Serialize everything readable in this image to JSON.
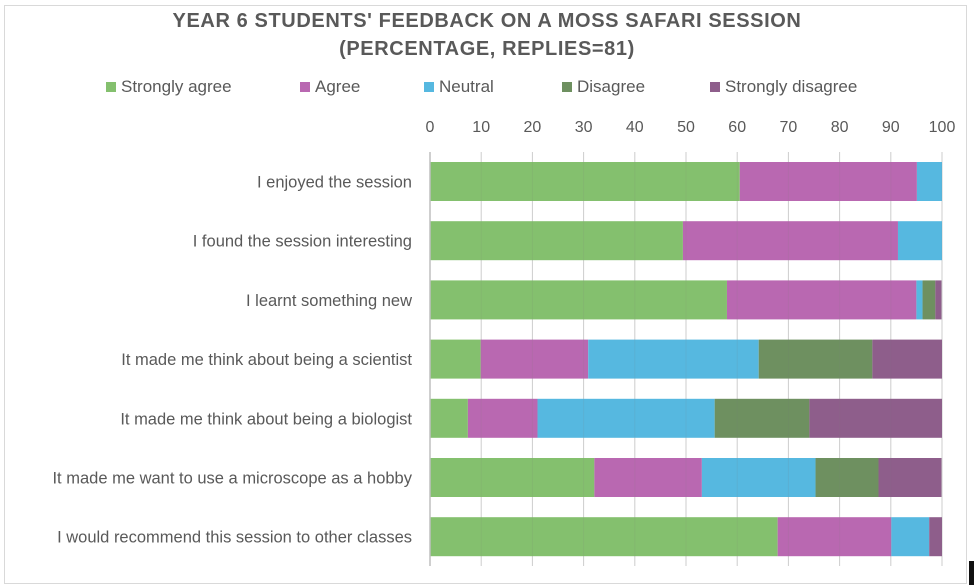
{
  "chart_data": {
    "type": "bar",
    "orientation": "horizontal",
    "stacked": true,
    "title_line1": "YEAR 6 STUDENTS' FEEDBACK ON A MOSS SAFARI SESSION",
    "title_line2": "(PERCENTAGE, REPLIES=81)",
    "xlabel": "",
    "ylabel": "",
    "xlim": [
      0,
      100
    ],
    "xticks": [
      "0",
      "10",
      "20",
      "30",
      "40",
      "50",
      "60",
      "70",
      "80",
      "90",
      "100"
    ],
    "xaxis_position": "top",
    "grid": true,
    "legend_position": "top",
    "categories": [
      "I enjoyed the session",
      "I found the session interesting",
      "I learnt something new",
      "It made me think about being a scientist",
      "It made me think about being a biologist",
      "It made me want to use a microscope as a hobby",
      "I would recommend this session to other classes"
    ],
    "series": [
      {
        "name": "Strongly agree",
        "color": "#84c06e",
        "values": [
          60.5,
          49.4,
          58.0,
          9.9,
          7.4,
          32.1,
          67.9
        ]
      },
      {
        "name": "Agree",
        "color": "#b968b1",
        "values": [
          34.6,
          42.0,
          37.0,
          21.0,
          13.6,
          21.0,
          22.2
        ]
      },
      {
        "name": "Neutral",
        "color": "#56b8e0",
        "values": [
          4.9,
          8.6,
          1.2,
          33.3,
          34.6,
          22.2,
          7.4
        ]
      },
      {
        "name": "Disagree",
        "color": "#6e9060",
        "values": [
          0,
          0,
          2.5,
          22.2,
          18.5,
          12.3,
          0
        ]
      },
      {
        "name": "Strongly disagree",
        "color": "#8e5e8b",
        "values": [
          0,
          0,
          1.2,
          13.6,
          25.9,
          12.3,
          2.5
        ]
      }
    ]
  }
}
